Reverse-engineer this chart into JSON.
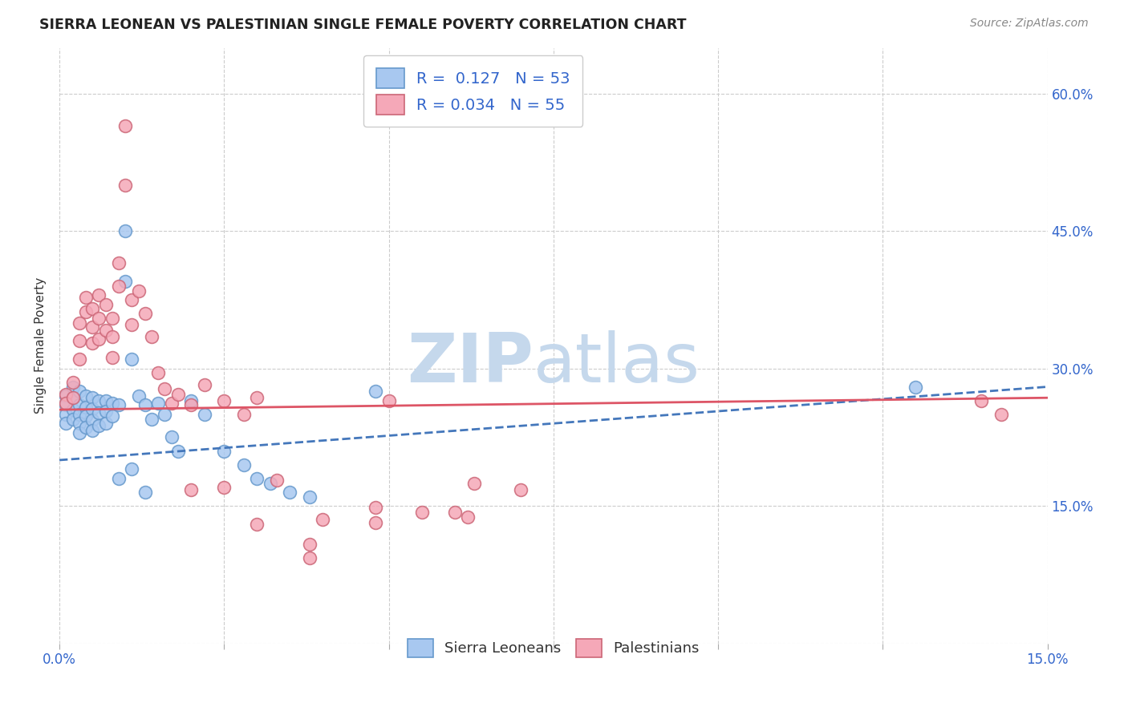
{
  "title": "SIERRA LEONEAN VS PALESTINIAN SINGLE FEMALE POVERTY CORRELATION CHART",
  "source": "Source: ZipAtlas.com",
  "ylabel": "Single Female Poverty",
  "y_ticks": [
    0.0,
    0.15,
    0.3,
    0.45,
    0.6
  ],
  "xlim": [
    0.0,
    0.15
  ],
  "ylim": [
    0.0,
    0.65
  ],
  "sierra_color": "#A8C8F0",
  "sierra_edge": "#6699CC",
  "palestinian_color": "#F5A8B8",
  "palestinian_edge": "#CC6677",
  "sierra_R": 0.127,
  "sierra_N": 53,
  "palestinian_R": 0.034,
  "palestinian_N": 55,
  "trend_sierra_color": "#4477BB",
  "trend_palestinian_color": "#DD5566",
  "watermark_color": "#C5D8EC",
  "sierra_x": [
    0.001,
    0.001,
    0.001,
    0.001,
    0.002,
    0.002,
    0.002,
    0.002,
    0.003,
    0.003,
    0.003,
    0.003,
    0.003,
    0.004,
    0.004,
    0.004,
    0.004,
    0.005,
    0.005,
    0.005,
    0.005,
    0.006,
    0.006,
    0.006,
    0.007,
    0.007,
    0.007,
    0.008,
    0.008,
    0.009,
    0.01,
    0.01,
    0.011,
    0.012,
    0.013,
    0.014,
    0.015,
    0.016,
    0.017,
    0.018,
    0.02,
    0.022,
    0.025,
    0.028,
    0.03,
    0.032,
    0.035,
    0.038,
    0.009,
    0.011,
    0.013,
    0.13,
    0.048
  ],
  "sierra_y": [
    0.27,
    0.26,
    0.25,
    0.24,
    0.28,
    0.268,
    0.255,
    0.245,
    0.275,
    0.26,
    0.25,
    0.24,
    0.23,
    0.27,
    0.258,
    0.248,
    0.236,
    0.268,
    0.256,
    0.244,
    0.232,
    0.265,
    0.252,
    0.238,
    0.265,
    0.253,
    0.24,
    0.262,
    0.248,
    0.26,
    0.45,
    0.395,
    0.31,
    0.27,
    0.26,
    0.245,
    0.262,
    0.25,
    0.225,
    0.21,
    0.265,
    0.25,
    0.21,
    0.195,
    0.18,
    0.175,
    0.165,
    0.16,
    0.18,
    0.19,
    0.165,
    0.28,
    0.275
  ],
  "palestinian_x": [
    0.001,
    0.001,
    0.002,
    0.002,
    0.003,
    0.003,
    0.003,
    0.004,
    0.004,
    0.005,
    0.005,
    0.005,
    0.006,
    0.006,
    0.006,
    0.007,
    0.007,
    0.008,
    0.008,
    0.008,
    0.009,
    0.009,
    0.01,
    0.01,
    0.011,
    0.011,
    0.012,
    0.013,
    0.014,
    0.015,
    0.016,
    0.017,
    0.018,
    0.02,
    0.022,
    0.025,
    0.028,
    0.03,
    0.033,
    0.04,
    0.05,
    0.055,
    0.06,
    0.062,
    0.063,
    0.07,
    0.048,
    0.048,
    0.02,
    0.025,
    0.03,
    0.038,
    0.038,
    0.14,
    0.143
  ],
  "palestinian_y": [
    0.272,
    0.262,
    0.285,
    0.268,
    0.35,
    0.33,
    0.31,
    0.378,
    0.362,
    0.365,
    0.345,
    0.328,
    0.38,
    0.355,
    0.332,
    0.37,
    0.342,
    0.355,
    0.335,
    0.312,
    0.415,
    0.39,
    0.565,
    0.5,
    0.375,
    0.348,
    0.385,
    0.36,
    0.335,
    0.295,
    0.278,
    0.262,
    0.272,
    0.26,
    0.282,
    0.265,
    0.25,
    0.268,
    0.178,
    0.135,
    0.265,
    0.143,
    0.143,
    0.138,
    0.175,
    0.168,
    0.148,
    0.132,
    0.168,
    0.17,
    0.13,
    0.108,
    0.093,
    0.265,
    0.25
  ]
}
